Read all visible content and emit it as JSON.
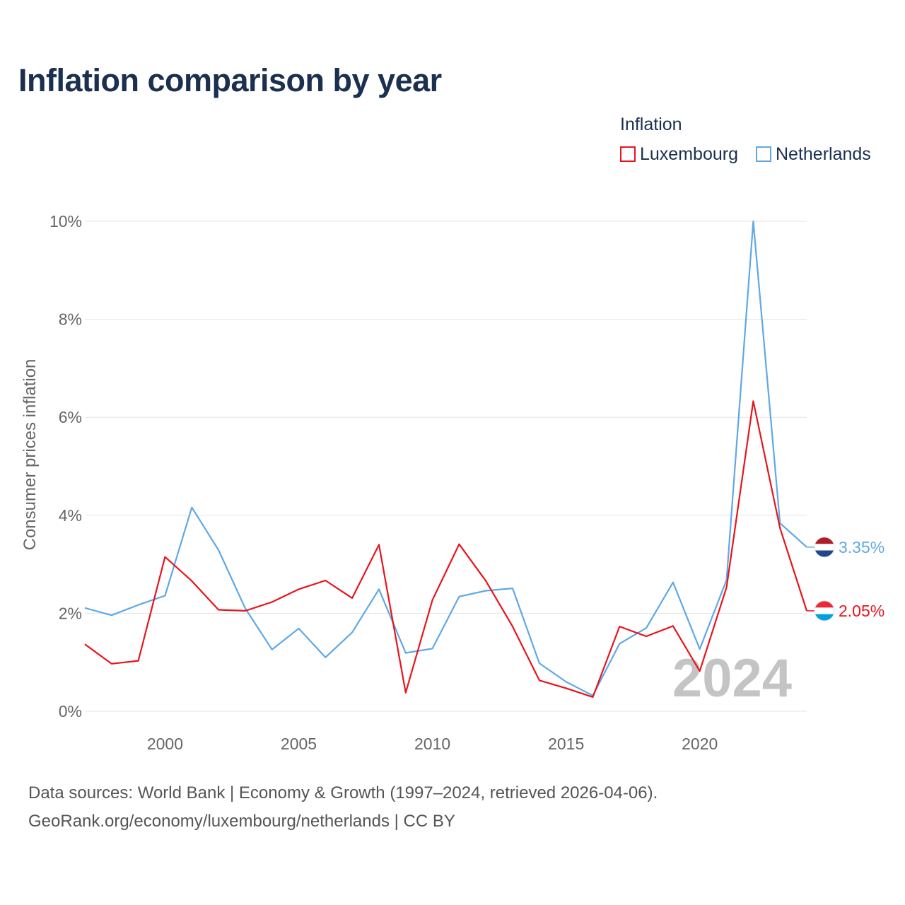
{
  "title": "Inflation comparison by year",
  "legend": {
    "title": "Inflation",
    "items": [
      {
        "name": "Luxembourg",
        "color": "#e8141c"
      },
      {
        "name": "Netherlands",
        "color": "#5fa8e6"
      }
    ]
  },
  "footer": {
    "line1": "Data sources: World Bank | Economy & Growth (1997–2024, retrieved 2026-04-06).",
    "line2": "GeoRank.org/economy/luxembourg/netherlands | CC BY"
  },
  "chart_data": {
    "type": "line",
    "title": "Inflation comparison by year",
    "xlabel": "",
    "ylabel": "Consumer prices inflation",
    "xlim": [
      1997,
      2024
    ],
    "ylim": [
      0,
      10
    ],
    "x_ticks": [
      2000,
      2005,
      2010,
      2015,
      2020
    ],
    "y_ticks": [
      0,
      2,
      4,
      6,
      8,
      10
    ],
    "y_tick_labels": [
      "0%",
      "2%",
      "4%",
      "6%",
      "8%",
      "10%"
    ],
    "grid": true,
    "watermark_year": "2024",
    "x": [
      1997,
      1998,
      1999,
      2000,
      2001,
      2002,
      2003,
      2004,
      2005,
      2006,
      2007,
      2008,
      2009,
      2010,
      2011,
      2012,
      2013,
      2014,
      2015,
      2016,
      2017,
      2018,
      2019,
      2020,
      2021,
      2022,
      2023,
      2024
    ],
    "series": [
      {
        "name": "Luxembourg",
        "color": "#e8141c",
        "end_label": "2.05%",
        "values": [
          1.37,
          0.97,
          1.03,
          3.15,
          2.66,
          2.07,
          2.05,
          2.23,
          2.49,
          2.67,
          2.31,
          3.4,
          0.38,
          2.27,
          3.41,
          2.66,
          1.73,
          0.63,
          0.47,
          0.29,
          1.73,
          1.53,
          1.74,
          0.82,
          2.53,
          6.33,
          3.74,
          2.05
        ]
      },
      {
        "name": "Netherlands",
        "color": "#5fa8e6",
        "end_label": "3.35%",
        "values": [
          2.11,
          1.96,
          2.17,
          2.36,
          4.16,
          3.29,
          2.1,
          1.26,
          1.69,
          1.1,
          1.61,
          2.49,
          1.19,
          1.28,
          2.34,
          2.46,
          2.51,
          0.98,
          0.6,
          0.32,
          1.38,
          1.7,
          2.63,
          1.27,
          2.68,
          10.0,
          3.84,
          3.35
        ]
      }
    ]
  }
}
